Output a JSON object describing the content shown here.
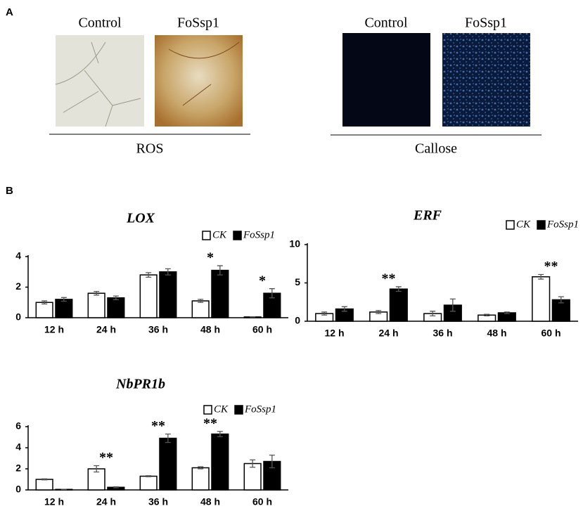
{
  "panel_labels": [
    "A",
    "B"
  ],
  "panel_a": {
    "groups": [
      {
        "conditions": [
          "Control",
          "FoSsp1"
        ],
        "label": "ROS"
      },
      {
        "conditions": [
          "Control",
          "FoSsp1"
        ],
        "label": "Callose"
      }
    ]
  },
  "chart_data": [
    {
      "type": "bar",
      "title": "LOX",
      "categories": [
        "12 h",
        "24 h",
        "36 h",
        "48 h",
        "60 h"
      ],
      "series": [
        {
          "name": "CK",
          "color": "#ffffff",
          "values": [
            1.0,
            1.6,
            2.8,
            1.1,
            0.05
          ],
          "errors": [
            0.1,
            0.12,
            0.15,
            0.1,
            0
          ]
        },
        {
          "name": "FoSsp1",
          "color": "#000000",
          "values": [
            1.2,
            1.3,
            3.0,
            3.1,
            1.6
          ],
          "errors": [
            0.12,
            0.12,
            0.2,
            0.3,
            0.3
          ]
        }
      ],
      "annotations": [
        null,
        null,
        null,
        "*",
        "*"
      ],
      "ylim": [
        0,
        4
      ],
      "yticks": [
        0,
        2,
        4
      ],
      "legend": "upper-right"
    },
    {
      "type": "bar",
      "title": "ERF",
      "categories": [
        "12 h",
        "24 h",
        "36 h",
        "48 h",
        "60 h"
      ],
      "series": [
        {
          "name": "CK",
          "color": "#ffffff",
          "values": [
            1.0,
            1.2,
            1.0,
            0.8,
            5.8
          ],
          "errors": [
            0.2,
            0.2,
            0.3,
            0.1,
            0.3
          ]
        },
        {
          "name": "FoSsp1",
          "color": "#000000",
          "values": [
            1.6,
            4.2,
            2.1,
            1.1,
            2.8
          ],
          "errors": [
            0.3,
            0.3,
            0.8,
            0.1,
            0.4
          ]
        }
      ],
      "annotations": [
        null,
        "**",
        null,
        null,
        "**"
      ],
      "ylim": [
        0,
        10
      ],
      "yticks": [
        0,
        5,
        10
      ],
      "legend": "upper-right"
    },
    {
      "type": "bar",
      "title": "NbPR1b",
      "categories": [
        "12 h",
        "24 h",
        "36 h",
        "48 h",
        "60 h"
      ],
      "series": [
        {
          "name": "CK",
          "color": "#ffffff",
          "values": [
            1.0,
            2.0,
            1.3,
            2.1,
            2.5
          ],
          "errors": [
            0.05,
            0.3,
            0.05,
            0.1,
            0.35
          ]
        },
        {
          "name": "FoSsp1",
          "color": "#000000",
          "values": [
            0.05,
            0.25,
            4.9,
            5.3,
            2.7
          ],
          "errors": [
            0,
            0.05,
            0.4,
            0.25,
            0.6
          ]
        }
      ],
      "annotations": [
        null,
        "**",
        "**",
        "**",
        null
      ],
      "ylim": [
        0,
        6
      ],
      "yticks": [
        0,
        2,
        4,
        6
      ],
      "legend": "upper-right"
    }
  ]
}
